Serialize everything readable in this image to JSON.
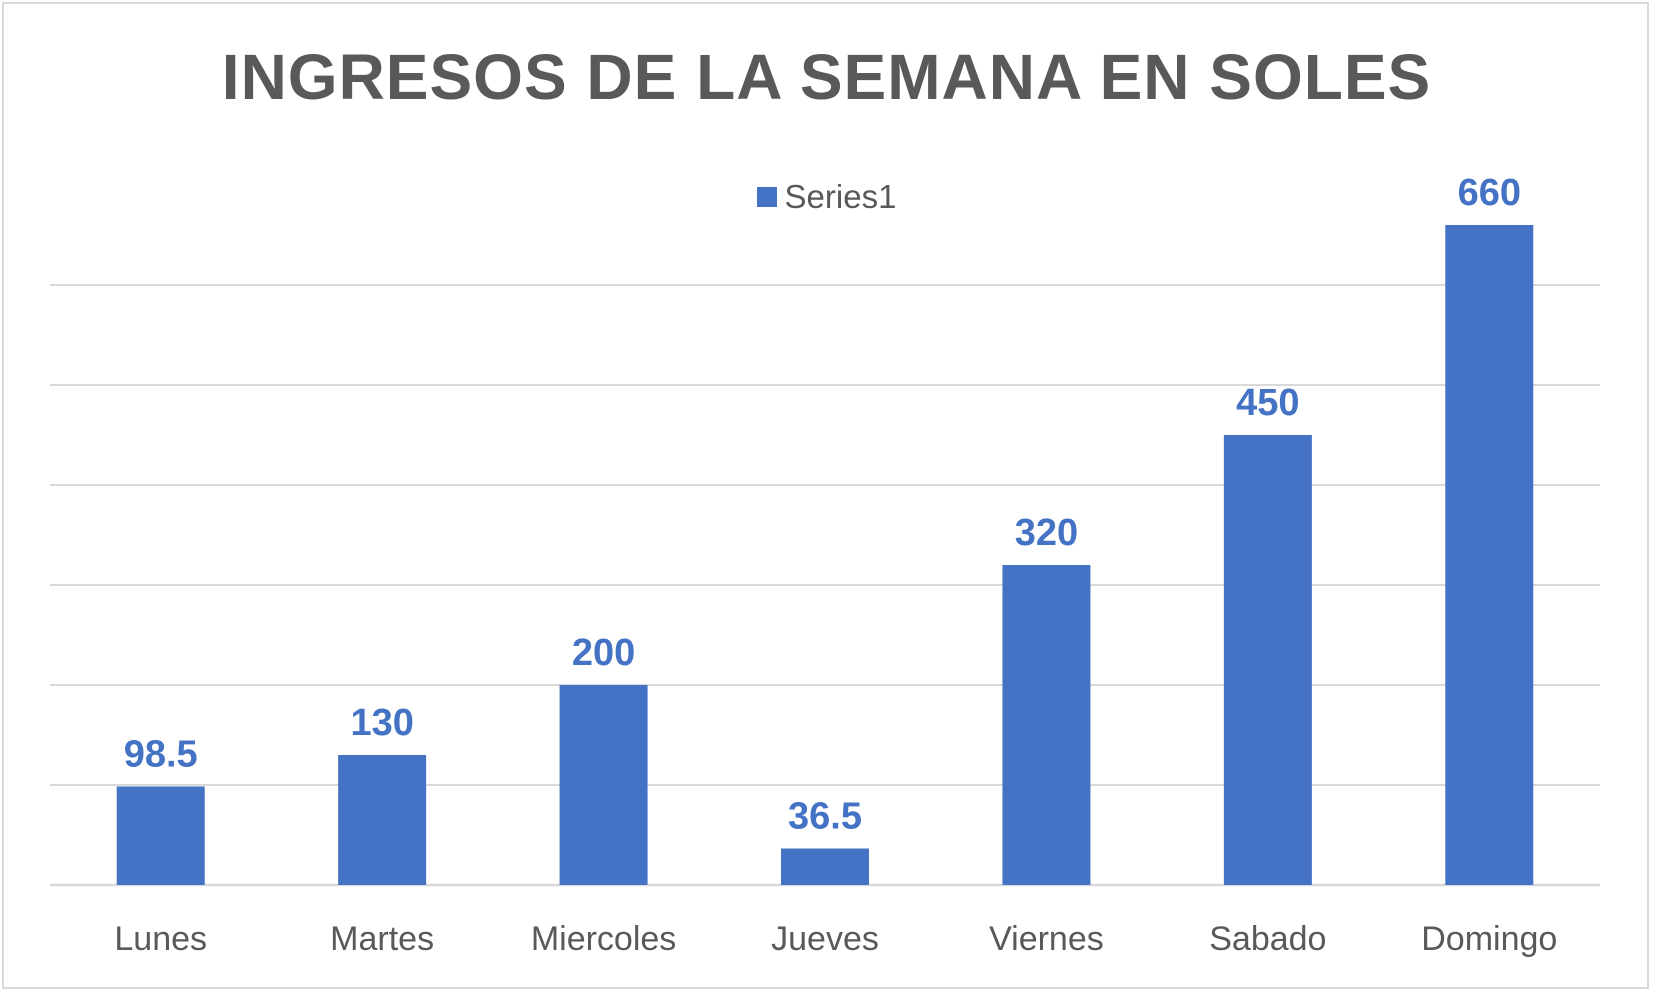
{
  "chart_data": {
    "type": "bar",
    "title": "INGRESOS DE LA SEMANA EN SOLES",
    "categories": [
      "Lunes",
      "Martes",
      "Miercoles",
      "Jueves",
      "Viernes",
      "Sabado",
      "Domingo"
    ],
    "series": [
      {
        "name": "Series1",
        "values": [
          98.5,
          130,
          200,
          36.5,
          320,
          450,
          660
        ],
        "color": "#4472c4"
      }
    ],
    "data_labels": [
      "98.5",
      "130",
      "200",
      "36.5",
      "320",
      "450",
      "660"
    ],
    "ylim": [
      0,
      700
    ],
    "gridline_step": 100,
    "grid": true,
    "y_tick_labels_shown": false,
    "legend_position": "top",
    "xlabel": "",
    "ylabel": ""
  }
}
